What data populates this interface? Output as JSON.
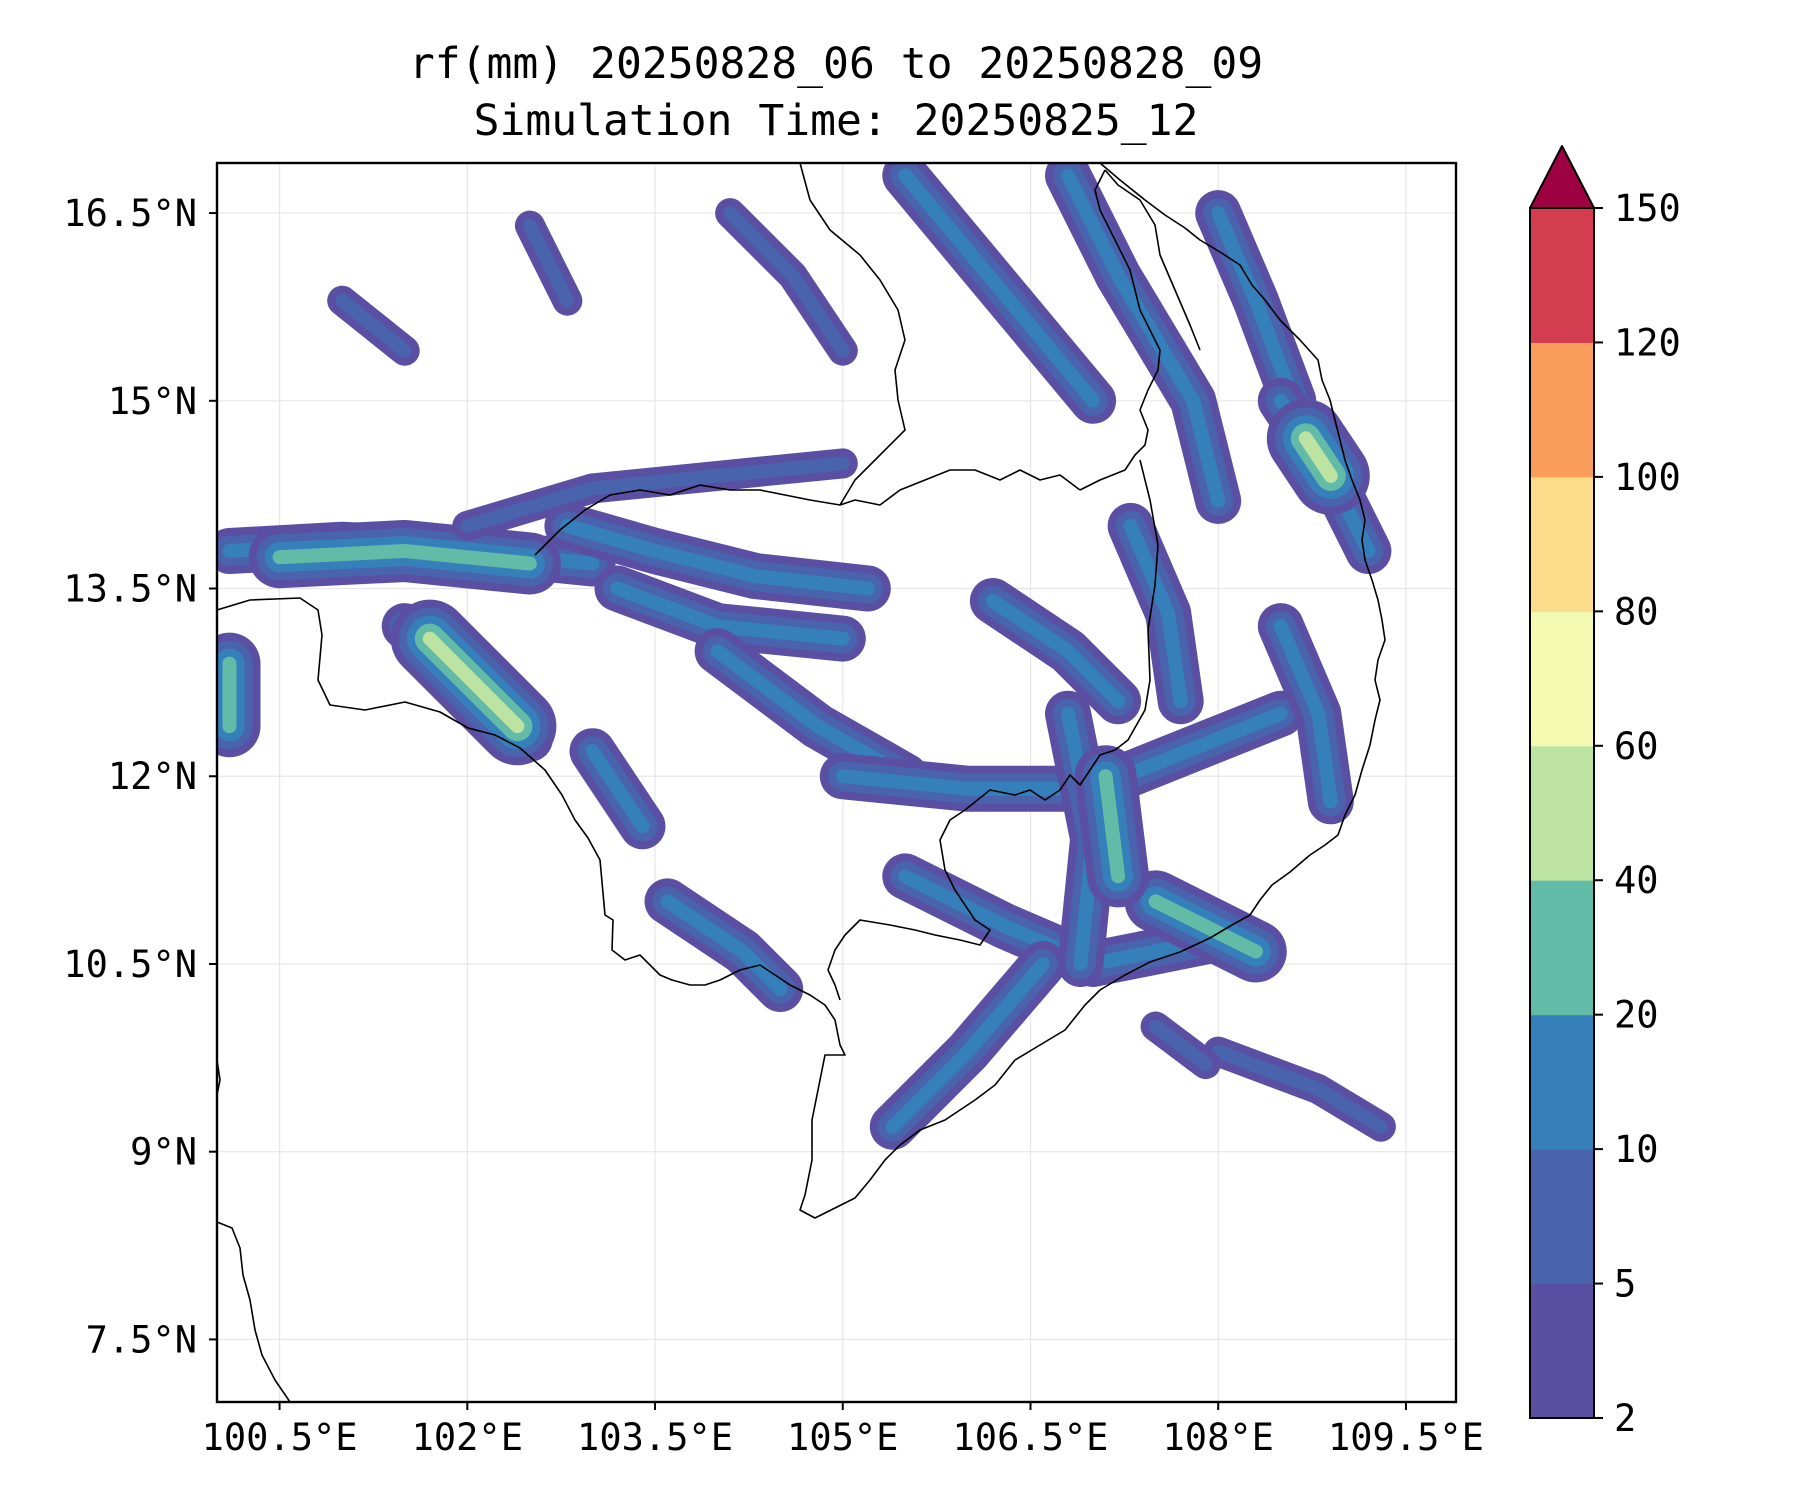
{
  "title": {
    "line1": "rf(mm) 20250828_06 to 20250828_09",
    "line2": "Simulation Time: 20250825_12"
  },
  "map": {
    "lon_range": [
      100.0,
      109.9
    ],
    "lat_range": [
      7.0,
      16.9
    ],
    "x_ticks": [
      {
        "value": 100.5,
        "label": "100.5°E"
      },
      {
        "value": 102.0,
        "label": "102°E"
      },
      {
        "value": 103.5,
        "label": "103.5°E"
      },
      {
        "value": 105.0,
        "label": "105°E"
      },
      {
        "value": 106.5,
        "label": "106.5°E"
      },
      {
        "value": 108.0,
        "label": "108°E"
      },
      {
        "value": 109.5,
        "label": "109.5°E"
      }
    ],
    "y_ticks": [
      {
        "value": 7.5,
        "label": "7.5°N"
      },
      {
        "value": 9.0,
        "label": "9°N"
      },
      {
        "value": 10.5,
        "label": "10.5°N"
      },
      {
        "value": 12.0,
        "label": "12°N"
      },
      {
        "value": 13.5,
        "label": "13.5°N"
      },
      {
        "value": 15.0,
        "label": "15°N"
      },
      {
        "value": 16.5,
        "label": "16.5°N"
      }
    ],
    "grid": true
  },
  "colorbar": {
    "levels": [
      "2",
      "5",
      "10",
      "20",
      "40",
      "60",
      "80",
      "100",
      "120",
      "150"
    ],
    "colors": [
      "#5a4fa2",
      "#4a63ad",
      "#3580bb",
      "#61bba6",
      "#bde3a2",
      "#f3f9b0",
      "#fbdc8b",
      "#f99d5b",
      "#d43d4f",
      "#9e0142"
    ],
    "extend": "max"
  },
  "rain_bands": [
    {
      "pts": [
        [
          100.1,
          13.8
        ],
        [
          101.0,
          13.85
        ],
        [
          102.0,
          13.8
        ],
        [
          103.0,
          13.7
        ]
      ],
      "level": 2
    },
    {
      "pts": [
        [
          100.5,
          13.75
        ],
        [
          101.5,
          13.8
        ],
        [
          102.5,
          13.7
        ]
      ],
      "level": 3
    },
    {
      "pts": [
        [
          101.5,
          13.2
        ],
        [
          102.0,
          12.8
        ],
        [
          102.5,
          12.3
        ]
      ],
      "level": 2
    },
    {
      "pts": [
        [
          101.7,
          13.1
        ],
        [
          102.1,
          12.7
        ],
        [
          102.4,
          12.4
        ]
      ],
      "level": 4
    },
    {
      "pts": [
        [
          102.8,
          14.0
        ],
        [
          103.5,
          13.8
        ],
        [
          104.3,
          13.6
        ],
        [
          105.2,
          13.5
        ]
      ],
      "level": 2
    },
    {
      "pts": [
        [
          103.2,
          13.5
        ],
        [
          104.0,
          13.2
        ],
        [
          105.0,
          13.1
        ]
      ],
      "level": 2
    },
    {
      "pts": [
        [
          102.0,
          14.0
        ],
        [
          103.0,
          14.3
        ],
        [
          104.0,
          14.4
        ],
        [
          105.0,
          14.5
        ]
      ],
      "level": 1
    },
    {
      "pts": [
        [
          104.0,
          13.0
        ],
        [
          104.8,
          12.4
        ],
        [
          105.5,
          12.0
        ]
      ],
      "level": 2
    },
    {
      "pts": [
        [
          105.0,
          12.0
        ],
        [
          106.0,
          11.9
        ],
        [
          107.0,
          11.9
        ],
        [
          108.5,
          12.5
        ]
      ],
      "level": 2
    },
    {
      "pts": [
        [
          105.5,
          11.2
        ],
        [
          106.3,
          10.8
        ],
        [
          107.0,
          10.5
        ],
        [
          108.0,
          10.7
        ]
      ],
      "level": 2
    },
    {
      "pts": [
        [
          107.5,
          11.0
        ],
        [
          108.3,
          10.6
        ]
      ],
      "level": 3
    },
    {
      "pts": [
        [
          106.8,
          12.5
        ],
        [
          107.0,
          11.5
        ],
        [
          106.9,
          10.5
        ]
      ],
      "level": 2
    },
    {
      "pts": [
        [
          107.1,
          12.0
        ],
        [
          107.2,
          11.2
        ]
      ],
      "level": 3
    },
    {
      "pts": [
        [
          106.6,
          10.5
        ],
        [
          106.0,
          9.8
        ],
        [
          105.4,
          9.2
        ]
      ],
      "level": 2
    },
    {
      "pts": [
        [
          103.6,
          11.0
        ],
        [
          104.2,
          10.6
        ],
        [
          104.5,
          10.3
        ]
      ],
      "level": 2
    },
    {
      "pts": [
        [
          103.0,
          12.2
        ],
        [
          103.4,
          11.6
        ]
      ],
      "level": 2
    },
    {
      "pts": [
        [
          105.5,
          16.8
        ],
        [
          106.0,
          16.2
        ],
        [
          106.5,
          15.6
        ],
        [
          107.0,
          15.0
        ]
      ],
      "level": 2
    },
    {
      "pts": [
        [
          106.8,
          16.8
        ],
        [
          107.2,
          16.0
        ],
        [
          107.8,
          15.0
        ],
        [
          108.0,
          14.2
        ]
      ],
      "level": 2
    },
    {
      "pts": [
        [
          108.0,
          16.5
        ],
        [
          108.3,
          15.8
        ],
        [
          108.6,
          15.0
        ]
      ],
      "level": 2
    },
    {
      "pts": [
        [
          108.5,
          15.0
        ],
        [
          108.9,
          14.4
        ],
        [
          109.2,
          13.8
        ]
      ],
      "level": 2
    },
    {
      "pts": [
        [
          108.7,
          14.7
        ],
        [
          108.9,
          14.4
        ]
      ],
      "level": 4
    },
    {
      "pts": [
        [
          107.3,
          14.0
        ],
        [
          107.6,
          13.3
        ],
        [
          107.7,
          12.6
        ]
      ],
      "level": 2
    },
    {
      "pts": [
        [
          106.2,
          13.4
        ],
        [
          106.8,
          13.0
        ],
        [
          107.2,
          12.6
        ]
      ],
      "level": 2
    },
    {
      "pts": [
        [
          108.5,
          13.2
        ],
        [
          108.8,
          12.5
        ],
        [
          108.9,
          11.8
        ]
      ],
      "level": 2
    },
    {
      "pts": [
        [
          108.0,
          9.8
        ],
        [
          108.8,
          9.5
        ],
        [
          109.3,
          9.2
        ]
      ],
      "level": 1
    },
    {
      "pts": [
        [
          107.5,
          10.0
        ],
        [
          107.9,
          9.7
        ]
      ],
      "level": 1
    },
    {
      "pts": [
        [
          104.1,
          16.5
        ],
        [
          104.6,
          16.0
        ],
        [
          105.0,
          15.4
        ]
      ],
      "level": 1
    },
    {
      "pts": [
        [
          101.0,
          15.8
        ],
        [
          101.5,
          15.4
        ]
      ],
      "level": 1
    },
    {
      "pts": [
        [
          102.5,
          16.4
        ],
        [
          102.8,
          15.8
        ]
      ],
      "level": 1
    },
    {
      "pts": [
        [
          100.1,
          12.9
        ],
        [
          100.1,
          12.4
        ]
      ],
      "level": 3
    }
  ]
}
